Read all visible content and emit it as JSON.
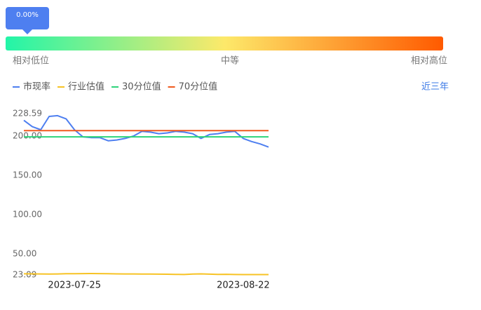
{
  "percentile": {
    "value": 0,
    "label": "0.00%"
  },
  "scale_labels": [
    "相对低位",
    "中等",
    "相对高位"
  ],
  "period": "近三年",
  "chart_data": {
    "type": "line",
    "categories": [
      null,
      null,
      null,
      null,
      null,
      null,
      "2023-07-25",
      null,
      null,
      null,
      null,
      null,
      null,
      null,
      null,
      null,
      null,
      null,
      null,
      null,
      null,
      null,
      null,
      null,
      null,
      null,
      "2023-08-22",
      null,
      null,
      null
    ],
    "series": [
      {
        "name": "市现率",
        "color": "#4e7ff0",
        "values": [
          220,
          212,
          208,
          225,
          226,
          222,
          208,
          199,
          198,
          198,
          194,
          195,
          197,
          200,
          206,
          205,
          203,
          204,
          206,
          205,
          203,
          197,
          202,
          203,
          205,
          206,
          197,
          193,
          190,
          186
        ]
      },
      {
        "name": "行业估值",
        "color": "#f7c325",
        "values": [
          24.5,
          24.4,
          24.3,
          24.2,
          24.3,
          24.6,
          24.7,
          24.8,
          24.9,
          24.8,
          24.6,
          24.4,
          24.3,
          24.3,
          24.2,
          24.2,
          24.1,
          24.0,
          23.8,
          23.6,
          24.2,
          24.4,
          24.1,
          23.8,
          23.9,
          23.6,
          23.5,
          23.5,
          23.5,
          23.5
        ]
      },
      {
        "name": "30分位值",
        "color": "#2ed47a",
        "values": [
          199,
          199,
          199,
          199,
          199,
          199,
          199,
          199,
          199,
          199,
          199,
          199,
          199,
          199,
          199,
          199,
          199,
          199,
          199,
          199,
          199,
          199,
          199,
          199,
          199,
          199,
          199,
          199,
          199,
          199
        ]
      },
      {
        "name": "70分位值",
        "color": "#f05a1e",
        "values": [
          207,
          207,
          207,
          207,
          207,
          207,
          207,
          207,
          207,
          207,
          207,
          207,
          207,
          207,
          207,
          207,
          207,
          207,
          207,
          207,
          207,
          207,
          207,
          207,
          207,
          207,
          207,
          207,
          207,
          207
        ]
      }
    ],
    "ylim": [
      23.09,
      228.59
    ],
    "yticks": [
      23.09,
      {
        "value": 50,
        "label": "50.00"
      },
      {
        "value": 100,
        "label": "100.00"
      },
      {
        "value": 150,
        "label": "150.00"
      },
      {
        "value": 200,
        "label": "200.00"
      },
      228.59
    ],
    "grid": false
  }
}
